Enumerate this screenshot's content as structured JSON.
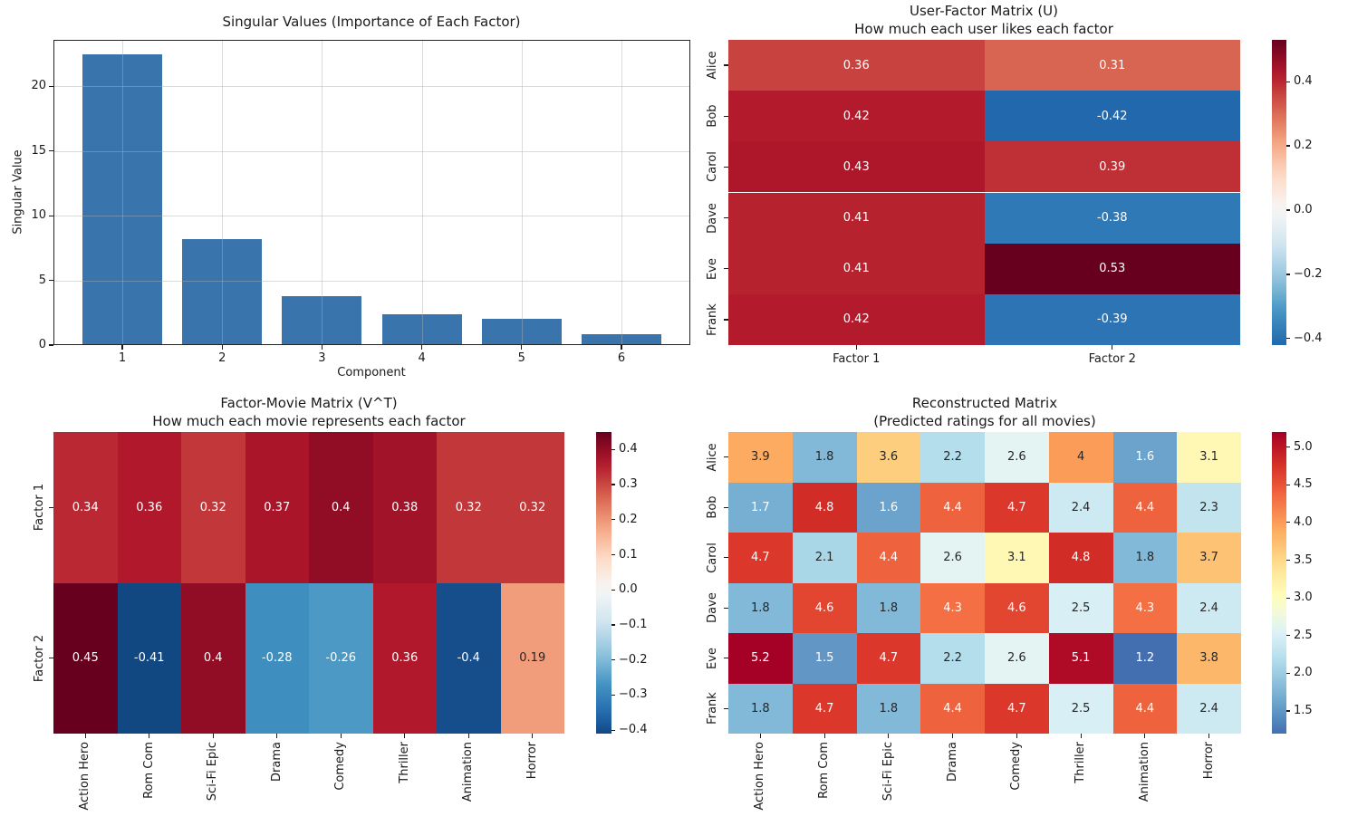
{
  "figure": {
    "background": "#ffffff",
    "text_color": "#1a1a1a"
  },
  "chart_data": [
    {
      "type": "bar",
      "title": "Singular Values (Importance of Each Factor)",
      "xlabel": "Component",
      "ylabel": "Singular Value",
      "categories": [
        "1",
        "2",
        "3",
        "4",
        "5",
        "6"
      ],
      "values": [
        22.5,
        8.2,
        3.8,
        2.35,
        2.05,
        0.85
      ],
      "bar_color": "#3a74ad",
      "ylim": [
        0,
        23.6
      ],
      "yticks": [
        0,
        5,
        10,
        15,
        20
      ],
      "xlim": [
        0.31,
        6.69
      ],
      "grid": true
    },
    {
      "type": "heatmap",
      "title": "User-Factor Matrix (U)",
      "subtitle": "How much each user likes each factor",
      "rows": [
        "Alice",
        "Bob",
        "Carol",
        "Dave",
        "Eve",
        "Frank"
      ],
      "columns": [
        "Factor 1",
        "Factor 2"
      ],
      "values": [
        [
          0.36,
          0.31
        ],
        [
          0.42,
          -0.42
        ],
        [
          0.43,
          0.39
        ],
        [
          0.41,
          -0.38
        ],
        [
          0.41,
          0.53
        ],
        [
          0.42,
          -0.39
        ]
      ],
      "cmap": "RdBu_r",
      "center": 0,
      "vmin": -0.42,
      "vmax": 0.53,
      "colorbar_ticks": [
        0.4,
        0.2,
        0.0,
        -0.2,
        -0.4
      ],
      "row_labels_rotated": true,
      "col_labels_rotated": false
    },
    {
      "type": "heatmap",
      "title": "Factor-Movie Matrix (V^T)",
      "subtitle": "How much each movie represents each factor",
      "rows": [
        "Factor 1",
        "Factor 2"
      ],
      "columns": [
        "Action Hero",
        "Rom Com",
        "Sci-Fi Epic",
        "Drama",
        "Comedy",
        "Thriller",
        "Animation",
        "Horror"
      ],
      "values": [
        [
          0.34,
          0.36,
          0.32,
          0.37,
          0.4,
          0.38,
          0.32,
          0.32
        ],
        [
          0.45,
          -0.41,
          0.4,
          -0.28,
          -0.26,
          0.36,
          -0.4,
          0.19
        ]
      ],
      "cmap": "RdBu_r",
      "center": 0,
      "vmin": -0.41,
      "vmax": 0.45,
      "colorbar_ticks": [
        0.4,
        0.3,
        0.2,
        0.1,
        0.0,
        -0.1,
        -0.2,
        -0.3,
        -0.4
      ],
      "row_labels_rotated": true,
      "col_labels_rotated": true
    },
    {
      "type": "heatmap",
      "title": "Reconstructed Matrix",
      "subtitle": "(Predicted ratings for all movies)",
      "rows": [
        "Alice",
        "Bob",
        "Carol",
        "Dave",
        "Eve",
        "Frank"
      ],
      "columns": [
        "Action Hero",
        "Rom Com",
        "Sci-Fi Epic",
        "Drama",
        "Comedy",
        "Thriller",
        "Animation",
        "Horror"
      ],
      "values": [
        [
          3.9,
          1.8,
          3.6,
          2.2,
          2.6,
          4,
          1.6,
          3.1
        ],
        [
          1.7,
          4.8,
          1.6,
          4.4,
          4.7,
          2.4,
          4.4,
          2.3
        ],
        [
          4.7,
          2.1,
          4.4,
          2.6,
          3.1,
          4.8,
          1.8,
          3.7
        ],
        [
          1.8,
          4.6,
          1.8,
          4.3,
          4.6,
          2.5,
          4.3,
          2.4
        ],
        [
          5.2,
          1.5,
          4.7,
          2.2,
          2.6,
          5.1,
          1.2,
          3.8
        ],
        [
          1.8,
          4.7,
          1.8,
          4.4,
          4.7,
          2.5,
          4.4,
          2.4
        ]
      ],
      "cmap": "RdYlBu_r",
      "center": 3,
      "vmin": 1.2,
      "vmax": 5.2,
      "colorbar_ticks": [
        5.0,
        4.5,
        4.0,
        3.5,
        3.0,
        2.5,
        2.0,
        1.5
      ],
      "row_labels_rotated": true,
      "col_labels_rotated": true
    }
  ]
}
